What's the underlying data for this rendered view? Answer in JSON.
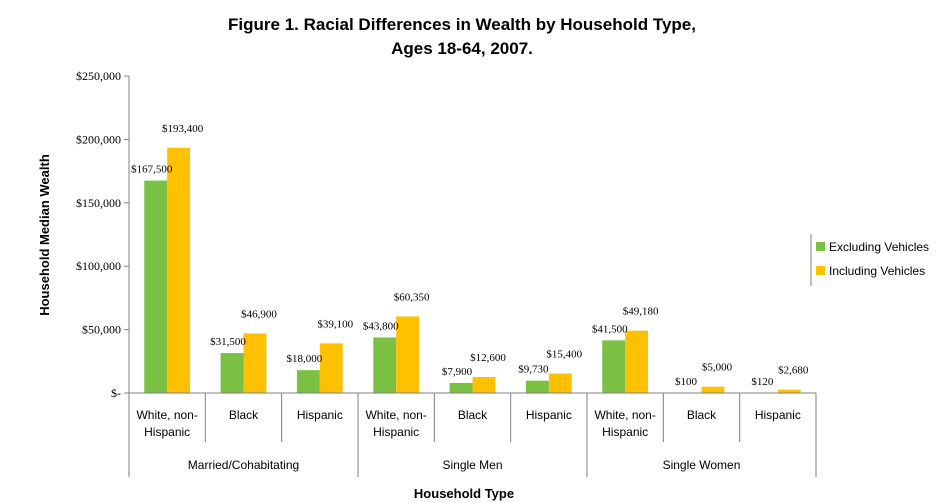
{
  "chart_data": {
    "type": "bar",
    "title_line1": "Figure 1. Racial Differences in Wealth by Household Type,",
    "title_line2": "Ages 18-64, 2007.",
    "xlabel": "Household Type",
    "ylabel": "Household Median Wealth",
    "ylim": [
      0,
      250000
    ],
    "yticks": [
      {
        "value": 0,
        "label": "$-"
      },
      {
        "value": 50000,
        "label": "$50,000"
      },
      {
        "value": 100000,
        "label": "$100,000"
      },
      {
        "value": 150000,
        "label": "$150,000"
      },
      {
        "value": 200000,
        "label": "$200,000"
      },
      {
        "value": 250000,
        "label": "$250,000"
      }
    ],
    "categories": [
      {
        "line1": "White, non-",
        "line2": "Hispanic"
      },
      {
        "line1": "Black",
        "line2": ""
      },
      {
        "line1": "Hispanic",
        "line2": ""
      },
      {
        "line1": "White, non-",
        "line2": "Hispanic"
      },
      {
        "line1": "Black",
        "line2": ""
      },
      {
        "line1": "Hispanic",
        "line2": ""
      },
      {
        "line1": "White, non-",
        "line2": "Hispanic"
      },
      {
        "line1": "Black",
        "line2": ""
      },
      {
        "line1": "Hispanic",
        "line2": ""
      }
    ],
    "groups": [
      {
        "label": "Married/Cohabitating",
        "count": 3
      },
      {
        "label": "Single Men",
        "count": 3
      },
      {
        "label": "Single Women",
        "count": 3
      }
    ],
    "series": [
      {
        "name": "Excluding Vehicles",
        "color": "#7ac143",
        "values": [
          167500,
          31500,
          18000,
          43800,
          7900,
          9730,
          41500,
          100,
          120
        ],
        "labels": [
          "$167,500",
          "$31,500",
          "$18,000",
          "$43,800",
          "$7,900",
          "$9,730",
          "$41,500",
          "$100",
          "$120"
        ]
      },
      {
        "name": "Including Vehicles",
        "color": "#ffc000",
        "values": [
          193400,
          46900,
          39100,
          60350,
          12600,
          15400,
          49180,
          5000,
          2680
        ],
        "labels": [
          "$193,400",
          "$46,900",
          "$39,100",
          "$60,350",
          "$12,600",
          "$15,400",
          "$49,180",
          "$5,000",
          "$2,680"
        ]
      }
    ],
    "legend_position": "right"
  }
}
